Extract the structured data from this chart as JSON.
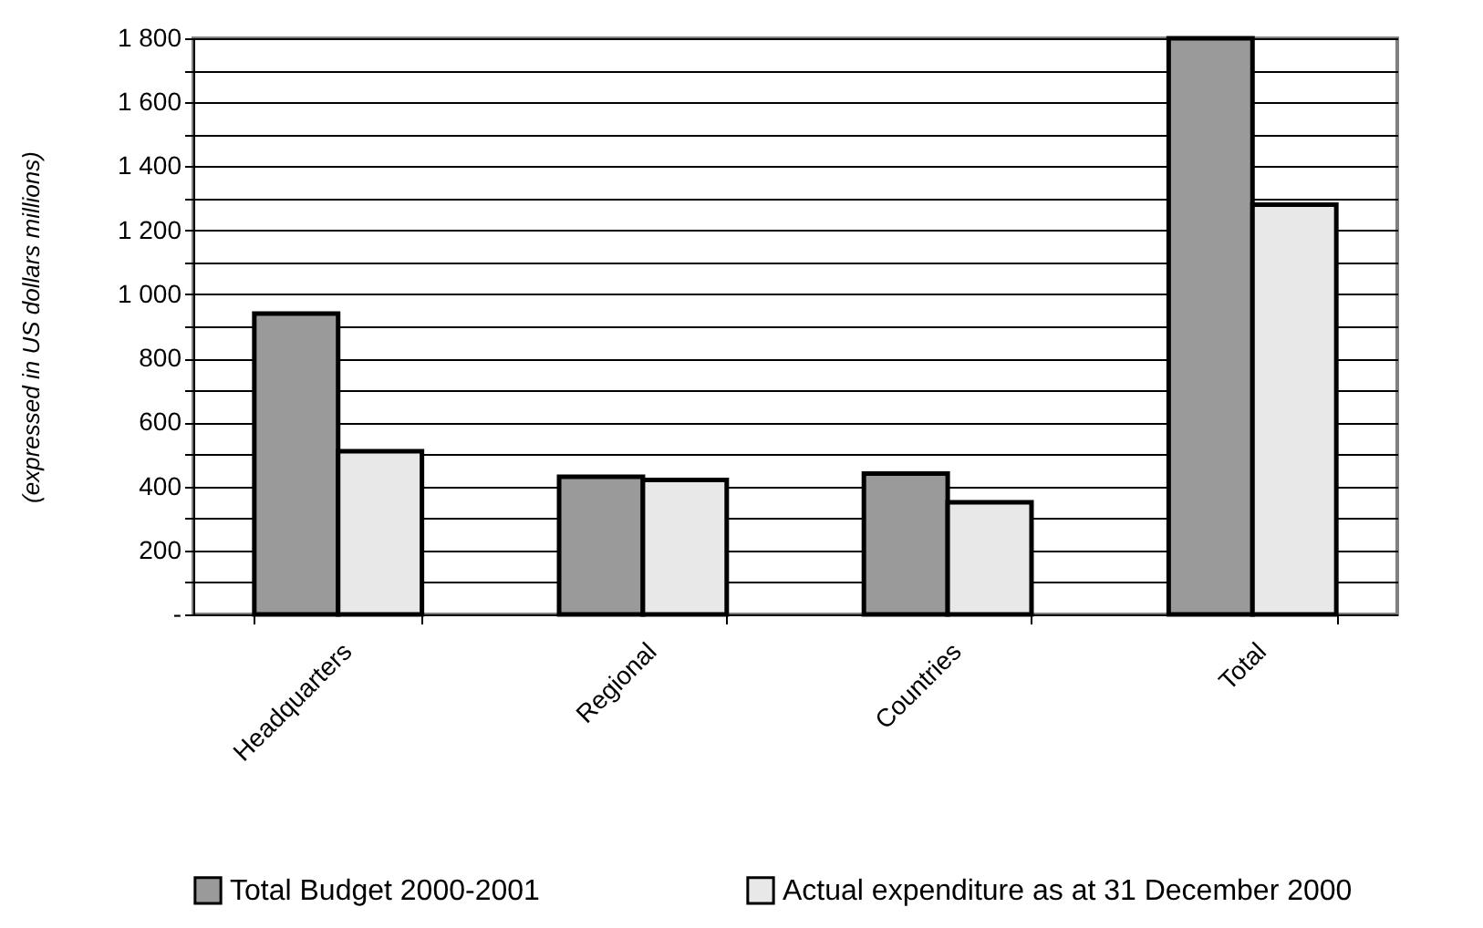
{
  "chart_data": {
    "type": "bar",
    "ylabel": "(expressed in US  dollars millions)",
    "categories": [
      "Headquarters",
      "Regional",
      "Countries",
      "Total"
    ],
    "series": [
      {
        "name": "Total Budget 2000-2001",
        "color": "#9a9a9a",
        "values": [
          940,
          430,
          440,
          1800
        ]
      },
      {
        "name": "Actual expenditure as at 31 December 2000",
        "color": "#e8e8e8",
        "values": [
          510,
          420,
          350,
          1280
        ]
      }
    ],
    "ylim": [
      0,
      1800
    ],
    "yticks": [
      {
        "value": 0,
        "label": "-"
      },
      {
        "value": 100,
        "label": null
      },
      {
        "value": 200,
        "label": "200"
      },
      {
        "value": 300,
        "label": null
      },
      {
        "value": 400,
        "label": "400"
      },
      {
        "value": 500,
        "label": null
      },
      {
        "value": 600,
        "label": "600"
      },
      {
        "value": 700,
        "label": null
      },
      {
        "value": 800,
        "label": "800"
      },
      {
        "value": 900,
        "label": null
      },
      {
        "value": 1000,
        "label": "1 000"
      },
      {
        "value": 1100,
        "label": null
      },
      {
        "value": 1200,
        "label": "1 200"
      },
      {
        "value": 1300,
        "label": null
      },
      {
        "value": 1400,
        "label": "1 400"
      },
      {
        "value": 1500,
        "label": null
      },
      {
        "value": 1600,
        "label": "1 600"
      },
      {
        "value": 1700,
        "label": null
      },
      {
        "value": 1800,
        "label": "1 800"
      }
    ],
    "grid": true,
    "legend": "bottom"
  }
}
